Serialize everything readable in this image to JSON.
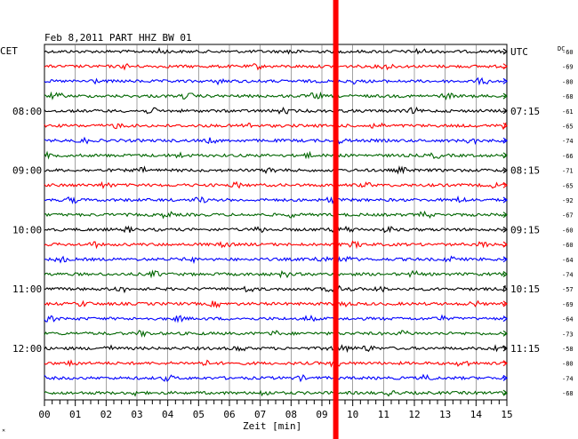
{
  "chart_data": {
    "type": "line",
    "title": "Feb 8,2011   PART HHZ BW 01",
    "left_label": "CET",
    "right_label": "UTC",
    "dc_header": "DC",
    "xlabel": "Zeit [min]",
    "xlim": [
      0,
      15
    ],
    "x_ticks": [
      "00",
      "01",
      "02",
      "03",
      "04",
      "05",
      "06",
      "07",
      "08",
      "09",
      "10",
      "11",
      "12",
      "13",
      "14",
      "15"
    ],
    "trace_colors": [
      "#000000",
      "#ff0000",
      "#0000ff",
      "#006600"
    ],
    "cet_labels": [
      {
        "trace": 4,
        "text": "08:00"
      },
      {
        "trace": 8,
        "text": "09:00"
      },
      {
        "trace": 12,
        "text": "10:00"
      },
      {
        "trace": 16,
        "text": "11:00"
      },
      {
        "trace": 20,
        "text": "12:00"
      }
    ],
    "utc_labels": [
      {
        "trace": 0,
        "text": "UTC"
      },
      {
        "trace": 4,
        "text": "07:15"
      },
      {
        "trace": 8,
        "text": "08:15"
      },
      {
        "trace": 12,
        "text": "09:15"
      },
      {
        "trace": 16,
        "text": "10:15"
      },
      {
        "trace": 20,
        "text": "11:15"
      }
    ],
    "dc_offsets": [
      "-60",
      "-69",
      "-80",
      "-68",
      "-61",
      "-65",
      "-74",
      "-66",
      "-71",
      "-65",
      "-92",
      "-67",
      "-60",
      "-60",
      "-64",
      "-74",
      "-57",
      "-69",
      "-64",
      "-73",
      "-58",
      "-80",
      "-74",
      "-68"
    ],
    "events": [
      {
        "trace": 12,
        "minute": 9.7
      },
      {
        "trace": 14,
        "minute": 9.6
      },
      {
        "trace": 16,
        "minute": 9.5
      },
      {
        "trace": 20,
        "minute": 9.6
      }
    ],
    "marker": {
      "minute": 9.45,
      "color": "#ff0000"
    },
    "corner_mark": "✕"
  }
}
